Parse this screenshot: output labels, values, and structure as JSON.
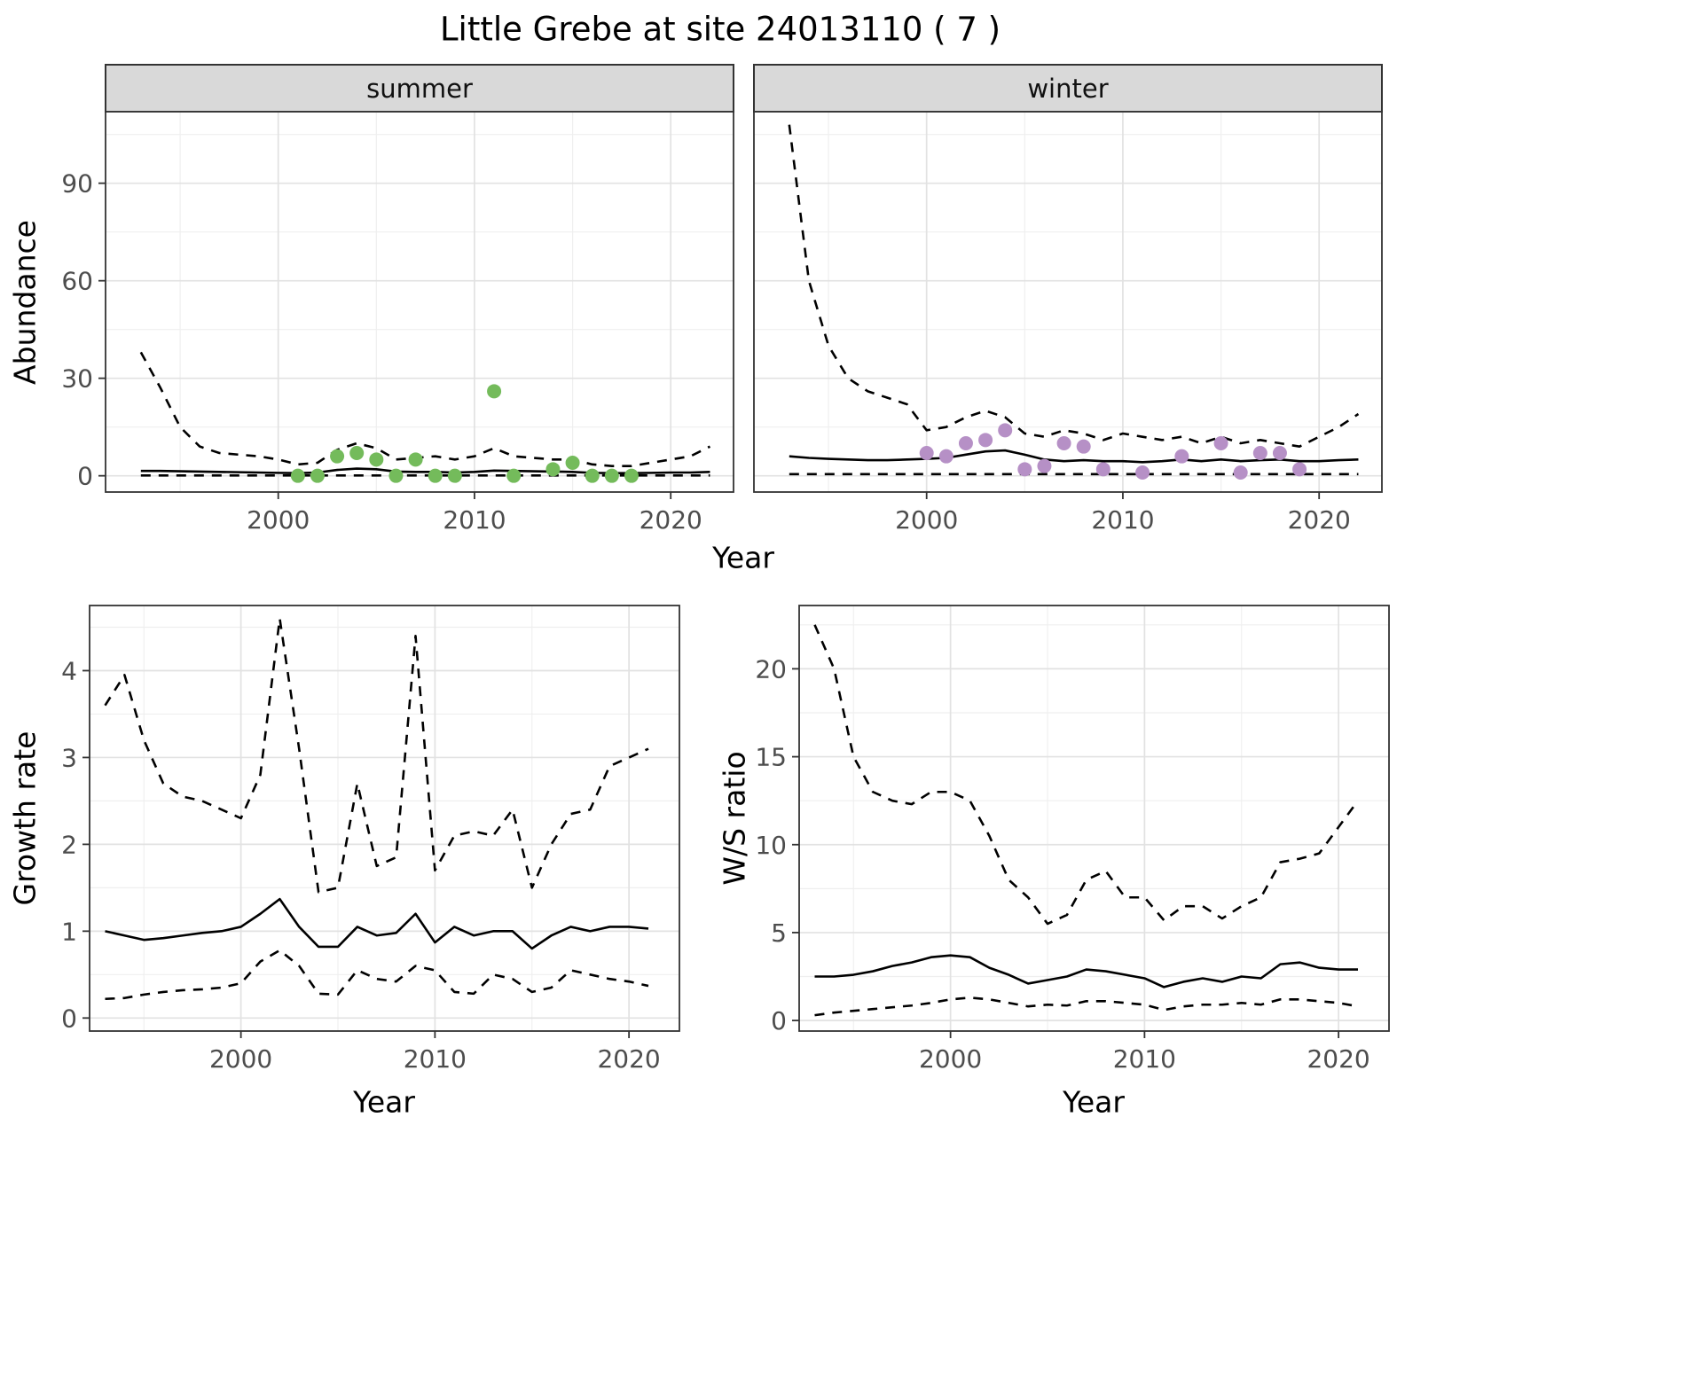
{
  "chart_data": {
    "type": "line",
    "title": "Little Grebe at site 24013110 ( 7 )",
    "top": {
      "ylabel": "Abundance",
      "xlabel": "Year",
      "facets": [
        "summer",
        "winter"
      ]
    },
    "colors": {
      "summer_points": "#74bb5b",
      "winter_points": "#b690c6",
      "line": "#000000",
      "border": "#333333",
      "tick_text": "#4d4d4d",
      "grid_major": "#e2e2e2",
      "grid_minor": "#efefef",
      "strip_bg": "#d9d9d9"
    },
    "panels": [
      {
        "id": "summer",
        "type": "line+scatter",
        "facet_label": "summer",
        "xlim": [
          1991.2,
          2023.2
        ],
        "ylim": [
          -5,
          112
        ],
        "x_ticks": [
          2000,
          2010,
          2020
        ],
        "y_ticks": [
          0,
          30,
          60,
          90
        ],
        "show_y_tick_labels": true,
        "years": [
          1993,
          1994,
          1995,
          1996,
          1997,
          1998,
          1999,
          2000,
          2001,
          2002,
          2003,
          2004,
          2005,
          2006,
          2007,
          2008,
          2009,
          2010,
          2011,
          2012,
          2013,
          2014,
          2015,
          2016,
          2017,
          2018,
          2019,
          2020,
          2021,
          2022
        ],
        "mean": [
          1.5,
          1.5,
          1.4,
          1.3,
          1.2,
          1.1,
          1.0,
          0.9,
          0.8,
          1.0,
          1.8,
          2.2,
          2.0,
          1.3,
          1.2,
          1.2,
          1.0,
          1.2,
          1.6,
          1.5,
          1.4,
          1.3,
          1.2,
          0.9,
          0.8,
          0.8,
          0.9,
          1.0,
          1.0,
          1.2
        ],
        "ci_upper": [
          38,
          27,
          15,
          9,
          7,
          6.5,
          6,
          5,
          3.5,
          4,
          8,
          10,
          8.5,
          5,
          5.5,
          6,
          5,
          6,
          8.5,
          6,
          5.5,
          5,
          5,
          3.5,
          3,
          3,
          4,
          5,
          6,
          9
        ],
        "ci_lower": [
          0.1,
          0.1,
          0.1,
          0.1,
          0.1,
          0.1,
          0.1,
          0.1,
          0.1,
          0.1,
          0.1,
          0.1,
          0.1,
          0.1,
          0.1,
          0.1,
          0.1,
          0.1,
          0.1,
          0.1,
          0.1,
          0.1,
          0.1,
          0.1,
          0.1,
          0.1,
          0.1,
          0.1,
          0.1,
          0.1
        ],
        "points": {
          "color_key": "summer_points",
          "years": [
            2001,
            2002,
            2003,
            2004,
            2005,
            2006,
            2007,
            2008,
            2009,
            2011,
            2012,
            2014,
            2015,
            2016,
            2017,
            2018
          ],
          "values": [
            0,
            0,
            6,
            7,
            5,
            0,
            5,
            0,
            0,
            26,
            0,
            2,
            4,
            0,
            0,
            0
          ]
        }
      },
      {
        "id": "winter",
        "type": "line+scatter",
        "facet_label": "winter",
        "xlim": [
          1991.2,
          2023.2
        ],
        "ylim": [
          -5,
          112
        ],
        "x_ticks": [
          2000,
          2010,
          2020
        ],
        "y_ticks": [
          0,
          30,
          60,
          90
        ],
        "show_y_tick_labels": false,
        "years": [
          1993,
          1994,
          1995,
          1996,
          1997,
          1998,
          1999,
          2000,
          2001,
          2002,
          2003,
          2004,
          2005,
          2006,
          2007,
          2008,
          2009,
          2010,
          2011,
          2012,
          2013,
          2014,
          2015,
          2016,
          2017,
          2018,
          2019,
          2020,
          2021,
          2022
        ],
        "mean": [
          6,
          5.5,
          5.2,
          5,
          4.8,
          4.8,
          5,
          5.2,
          5.5,
          6.5,
          7.5,
          7.8,
          6.5,
          5,
          4.5,
          4.8,
          4.5,
          4.5,
          4.2,
          4.5,
          5,
          4.5,
          5,
          4.5,
          4.8,
          5,
          4.5,
          4.5,
          4.8,
          5
        ],
        "ci_upper": [
          108,
          60,
          40,
          30,
          26,
          24,
          22,
          14,
          15,
          18,
          20,
          18,
          13,
          12,
          14,
          13,
          11,
          13,
          12,
          11,
          12,
          10,
          12,
          10,
          11,
          10,
          9,
          12,
          15,
          19
        ],
        "ci_lower": [
          0.5,
          0.5,
          0.5,
          0.5,
          0.5,
          0.5,
          0.5,
          0.5,
          0.5,
          0.5,
          0.5,
          0.5,
          0.5,
          0.5,
          0.5,
          0.5,
          0.5,
          0.5,
          0.5,
          0.5,
          0.5,
          0.5,
          0.5,
          0.5,
          0.5,
          0.5,
          0.5,
          0.5,
          0.5,
          0.5
        ],
        "points": {
          "color_key": "winter_points",
          "years": [
            2000,
            2001,
            2002,
            2003,
            2004,
            2005,
            2006,
            2007,
            2008,
            2009,
            2011,
            2013,
            2015,
            2016,
            2017,
            2018,
            2019
          ],
          "values": [
            7,
            6,
            10,
            11,
            14,
            2,
            3,
            10,
            9,
            2,
            1,
            6,
            10,
            1,
            7,
            7,
            2
          ]
        }
      },
      {
        "id": "growth",
        "type": "line",
        "ylabel": "Growth rate",
        "xlabel": "Year",
        "xlim": [
          1992.2,
          2022.6
        ],
        "ylim": [
          -0.15,
          4.75
        ],
        "x_ticks": [
          2000,
          2010,
          2020
        ],
        "y_ticks": [
          0,
          1,
          2,
          3,
          4
        ],
        "show_y_tick_labels": true,
        "years": [
          1993,
          1994,
          1995,
          1996,
          1997,
          1998,
          1999,
          2000,
          2001,
          2002,
          2003,
          2004,
          2005,
          2006,
          2007,
          2008,
          2009,
          2010,
          2011,
          2012,
          2013,
          2014,
          2015,
          2016,
          2017,
          2018,
          2019,
          2020,
          2021
        ],
        "mean": [
          1.0,
          0.95,
          0.9,
          0.92,
          0.95,
          0.98,
          1.0,
          1.05,
          1.2,
          1.37,
          1.05,
          0.82,
          0.82,
          1.05,
          0.95,
          0.98,
          1.2,
          0.87,
          1.05,
          0.95,
          1.0,
          1.0,
          0.8,
          0.95,
          1.05,
          1.0,
          1.05,
          1.05,
          1.03
        ],
        "ci_upper": [
          3.6,
          3.95,
          3.2,
          2.7,
          2.55,
          2.5,
          2.4,
          2.3,
          2.8,
          4.6,
          3.1,
          1.45,
          1.5,
          2.7,
          1.75,
          1.85,
          4.4,
          1.7,
          2.1,
          2.15,
          2.1,
          2.4,
          1.5,
          2.0,
          2.35,
          2.4,
          2.9,
          3.0,
          3.1
        ],
        "ci_lower": [
          0.22,
          0.23,
          0.27,
          0.3,
          0.32,
          0.33,
          0.35,
          0.4,
          0.65,
          0.78,
          0.6,
          0.28,
          0.27,
          0.55,
          0.45,
          0.42,
          0.6,
          0.55,
          0.3,
          0.28,
          0.5,
          0.45,
          0.3,
          0.35,
          0.55,
          0.5,
          0.45,
          0.42,
          0.37
        ]
      },
      {
        "id": "ws",
        "type": "line",
        "ylabel": "W/S ratio",
        "xlabel": "Year",
        "xlim": [
          1992.2,
          2022.6
        ],
        "ylim": [
          -0.6,
          23.6
        ],
        "x_ticks": [
          2000,
          2010,
          2020
        ],
        "y_ticks": [
          0,
          5,
          10,
          15,
          20
        ],
        "show_y_tick_labels": true,
        "years": [
          1993,
          1994,
          1995,
          1996,
          1997,
          1998,
          1999,
          2000,
          2001,
          2002,
          2003,
          2004,
          2005,
          2006,
          2007,
          2008,
          2009,
          2010,
          2011,
          2012,
          2013,
          2014,
          2015,
          2016,
          2017,
          2018,
          2019,
          2020,
          2021
        ],
        "mean": [
          2.5,
          2.5,
          2.6,
          2.8,
          3.1,
          3.3,
          3.6,
          3.7,
          3.6,
          3.0,
          2.6,
          2.1,
          2.3,
          2.5,
          2.9,
          2.8,
          2.6,
          2.4,
          1.9,
          2.2,
          2.4,
          2.2,
          2.5,
          2.4,
          3.2,
          3.3,
          3.0,
          2.9,
          2.9
        ],
        "ci_upper": [
          22.5,
          20,
          15,
          13,
          12.5,
          12.3,
          13,
          13,
          12.5,
          10.5,
          8,
          7,
          5.5,
          6,
          8,
          8.5,
          7,
          7,
          5.7,
          6.5,
          6.5,
          5.8,
          6.5,
          7,
          9,
          9.2,
          9.5,
          11,
          12.5
        ],
        "ci_lower": [
          0.3,
          0.45,
          0.55,
          0.65,
          0.75,
          0.85,
          1.0,
          1.2,
          1.3,
          1.2,
          1.0,
          0.8,
          0.9,
          0.85,
          1.1,
          1.1,
          1.0,
          0.9,
          0.6,
          0.8,
          0.9,
          0.9,
          1.0,
          0.9,
          1.2,
          1.2,
          1.1,
          1.0,
          0.8
        ]
      }
    ]
  }
}
